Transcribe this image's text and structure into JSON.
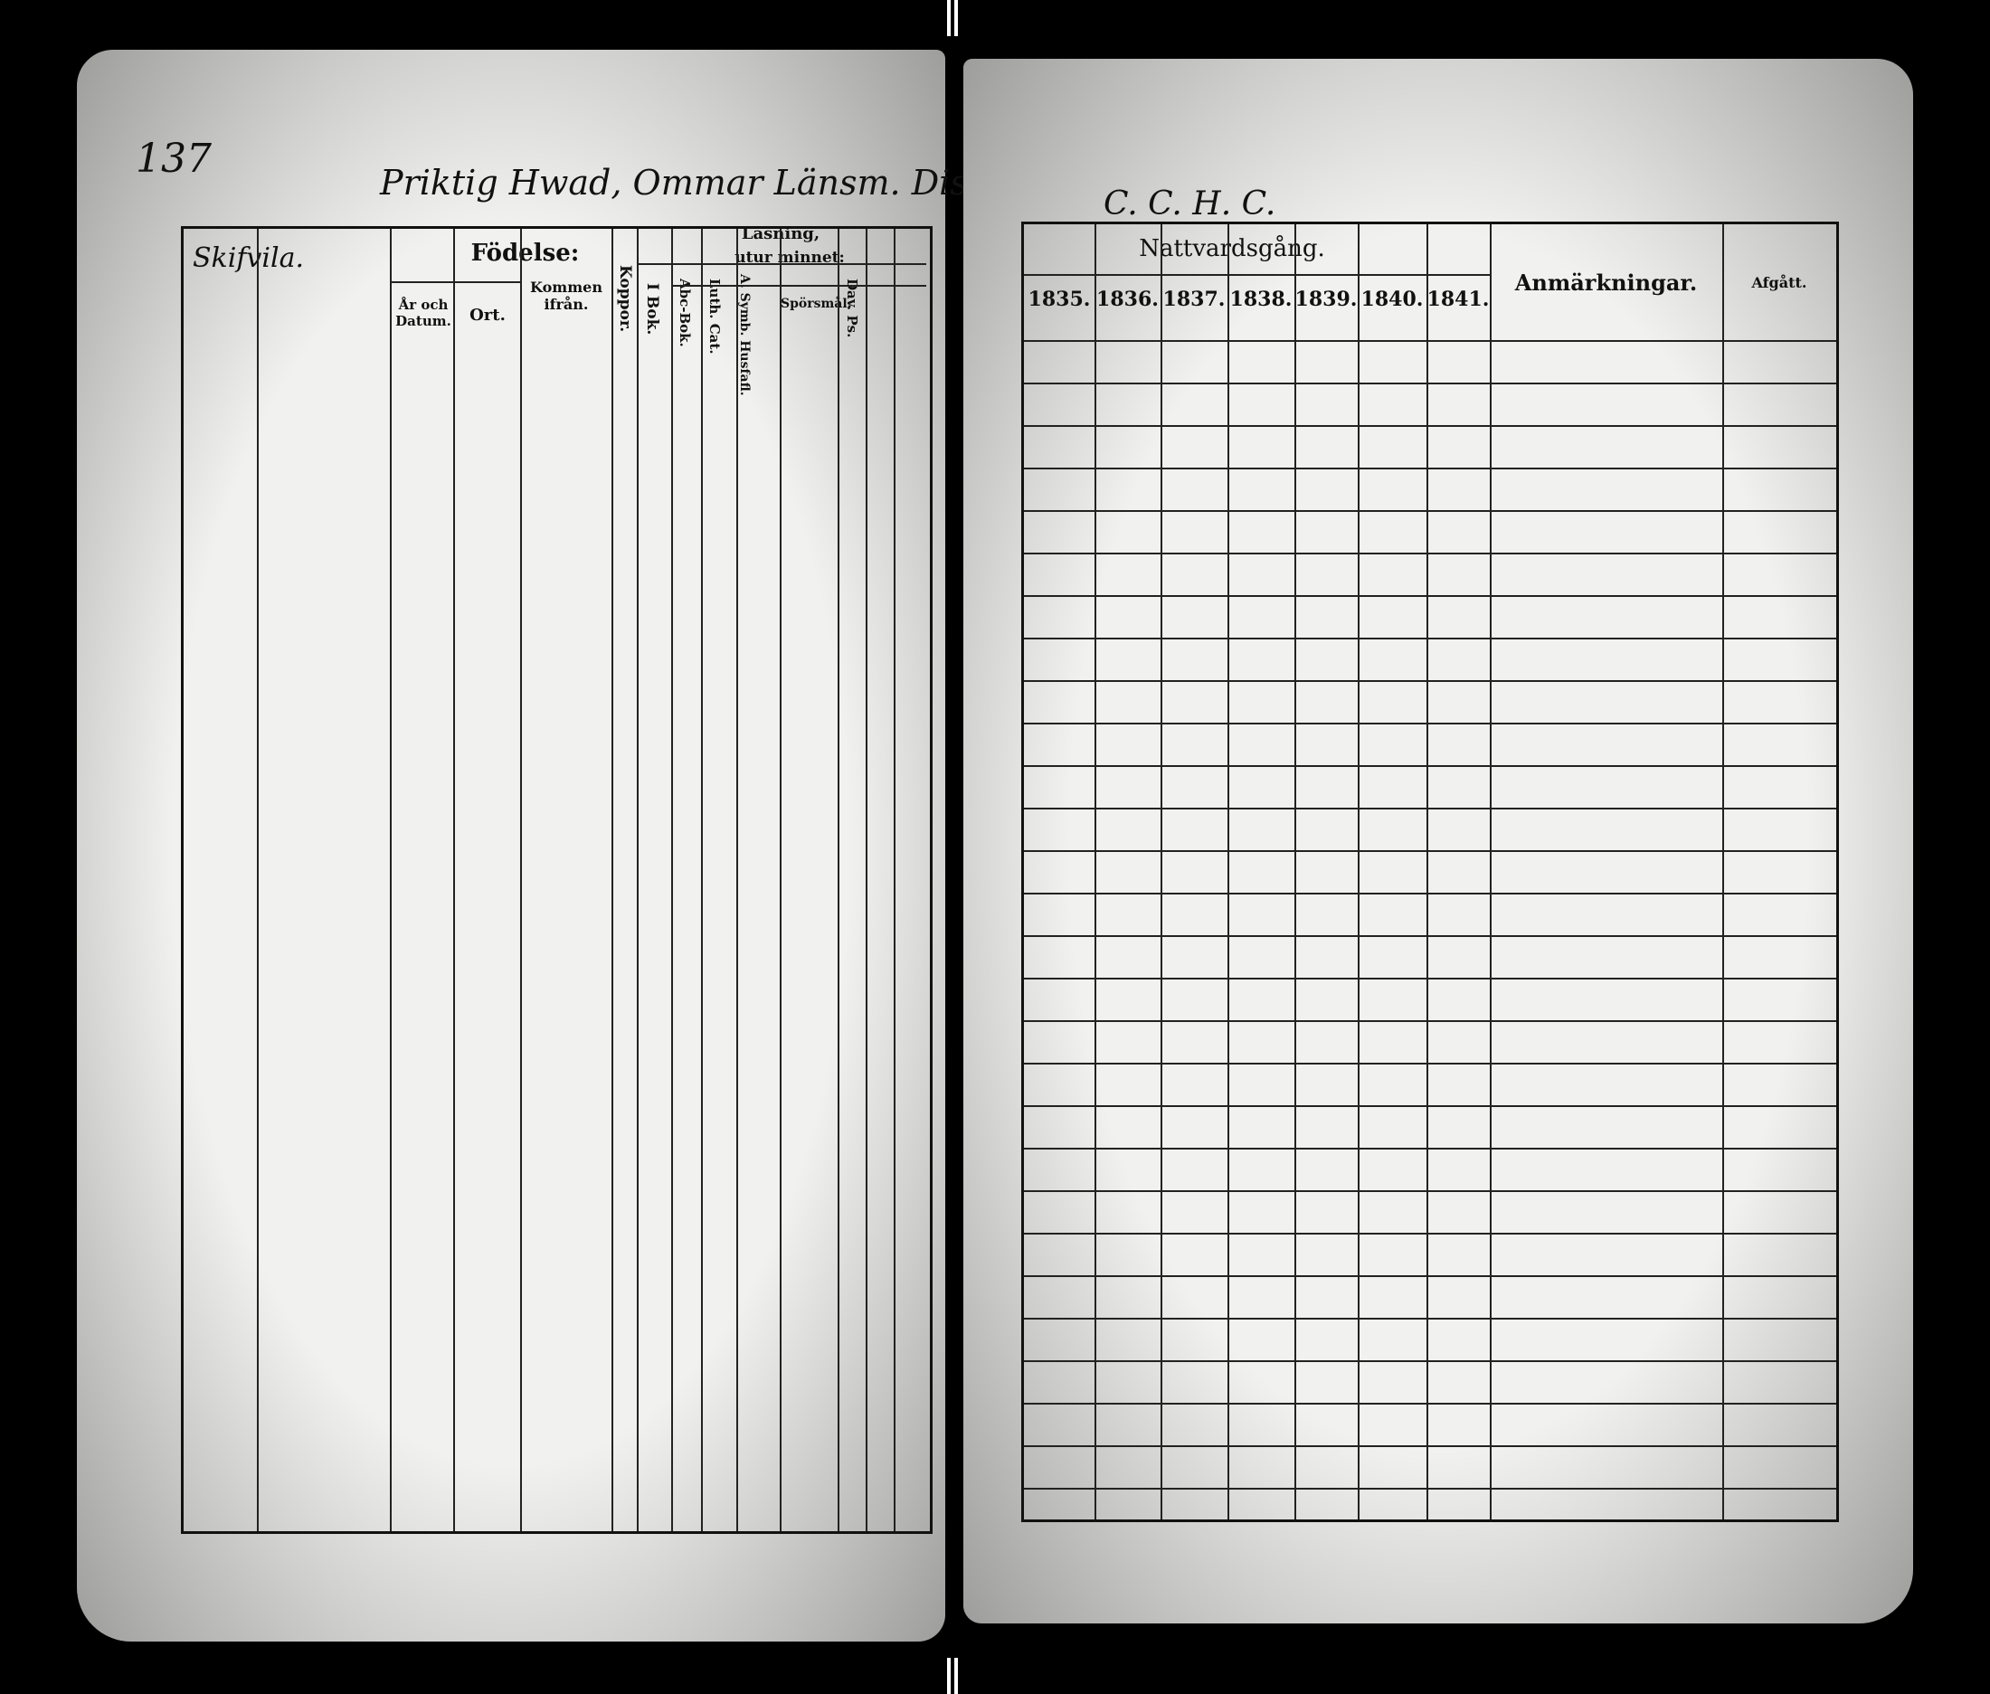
{
  "left_page": {
    "page_number": "137",
    "heading_handwritten": "Priktig Hwad, Ommar Länsm. Distr.",
    "place_handwritten": "Skifvila.",
    "headers": {
      "fodelse": "Födelse:",
      "ar_och_datum": "År och Datum.",
      "ort": "Ort.",
      "kommen_ifran": "Kommen ifrån.",
      "koppor": "Koppor.",
      "lasning": "Läsning,",
      "utur_minnet": "utur minnet:",
      "i_bok": "I Bok.",
      "abc_bok": "Abc-Bok.",
      "luth_cat": "Luth. Cat.",
      "a_symb": "A. Symb. Husfafl.",
      "sporsmal": "Spörsmål.",
      "dav_ps": "Dav. Ps."
    }
  },
  "right_page": {
    "heading_handwritten": "C. C. H. C.",
    "headers": {
      "nattvardsgang": "Nattvardsgång.",
      "years": [
        "1835.",
        "1836.",
        "1837.",
        "1838.",
        "1839.",
        "1840.",
        "1841."
      ],
      "anmarkningar": "Anmärkningar.",
      "afgatt": "Afgått."
    }
  }
}
